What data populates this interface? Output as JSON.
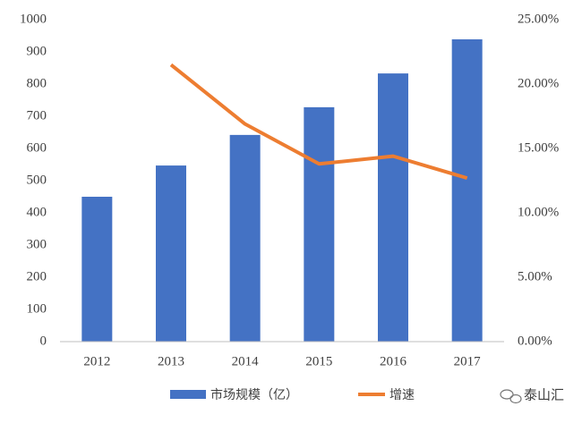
{
  "chart_data": {
    "type": "bar",
    "categories": [
      "2012",
      "2013",
      "2014",
      "2015",
      "2016",
      "2017"
    ],
    "series": [
      {
        "name": "市场规模（亿）",
        "type": "bar",
        "color": "#4472c4",
        "values": [
          450,
          547,
          642,
          728,
          833,
          939
        ]
      },
      {
        "name": "增速",
        "type": "line",
        "axis": "y2",
        "color": "#ed7d31",
        "values": [
          null,
          21.5,
          16.9,
          13.8,
          14.4,
          12.7
        ]
      }
    ],
    "ylim": [
      0,
      1000
    ],
    "yticks": [
      0,
      100,
      200,
      300,
      400,
      500,
      600,
      700,
      800,
      900,
      1000
    ],
    "y2lim": [
      0,
      25
    ],
    "y2ticks": [
      {
        "value": 0,
        "label": "0.00%"
      },
      {
        "value": 5,
        "label": "5.00%"
      },
      {
        "value": 10,
        "label": "10.00%"
      },
      {
        "value": 15,
        "label": "15.00%"
      },
      {
        "value": 20,
        "label": "20.00%"
      },
      {
        "value": 25,
        "label": "25.00%"
      }
    ],
    "grid": false,
    "legend": "bottom",
    "watermark": "泰山汇"
  }
}
